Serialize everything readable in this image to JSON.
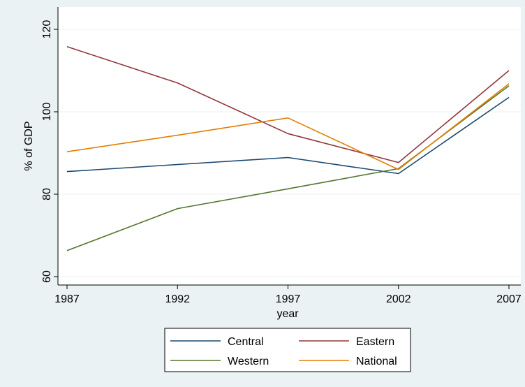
{
  "chart_data": {
    "type": "line",
    "x": [
      1987,
      1992,
      1997,
      2002,
      2007
    ],
    "x_ticks": [
      "1987",
      "1992",
      "1997",
      "2002",
      "2007"
    ],
    "xlabel": "year",
    "ylabel": "% of GDP",
    "ylim": [
      60,
      120
    ],
    "y_ticks": [
      60,
      80,
      100,
      120
    ],
    "y_tick_labels": [
      "60",
      "80",
      "100",
      "120"
    ],
    "grid": true,
    "legend_position": "bottom",
    "series": [
      {
        "name": "Central",
        "color": "#1a476f",
        "values": [
          85.5,
          87.2,
          88.9,
          85.0,
          103.5
        ]
      },
      {
        "name": "Eastern",
        "color": "#90353b",
        "values": [
          115.8,
          107.0,
          94.7,
          87.7,
          110.0
        ]
      },
      {
        "name": "Western",
        "color": "#55752f",
        "values": [
          66.3,
          76.5,
          81.3,
          86.2,
          106.3
        ]
      },
      {
        "name": "National",
        "color": "#e37e00",
        "values": [
          90.3,
          94.3,
          98.5,
          86.0,
          106.8
        ]
      }
    ]
  }
}
